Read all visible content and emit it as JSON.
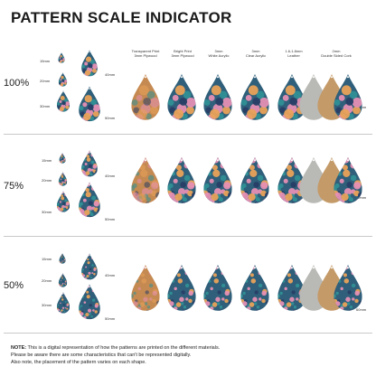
{
  "title": "PATTERN SCALE INDICATOR",
  "materials": [
    {
      "line1": "Transparent Print",
      "line2": "3mm Plywood"
    },
    {
      "line1": "Bright Print",
      "line2": "3mm Plywood"
    },
    {
      "line1": "3mm",
      "line2": "White Acrylic"
    },
    {
      "line1": "3mm",
      "line2": "Clear Acrylic"
    },
    {
      "line1": "1.6-1.8mm",
      "line2": "Leather"
    },
    {
      "line1": "2mm",
      "line2": "Double Sided Cork"
    }
  ],
  "sections": [
    {
      "scale": "100%",
      "sizes": {
        "s15": "15mm",
        "s20": "20mm",
        "s30": "30mm",
        "s40": "40mm",
        "s50": "50mm",
        "s60": "60mm"
      }
    },
    {
      "scale": "75%",
      "sizes": {
        "s15": "15mm",
        "s20": "20mm",
        "s30": "30mm",
        "s40": "40mm",
        "s50": "50mm",
        "s60": "60mm"
      }
    },
    {
      "scale": "50%",
      "sizes": {
        "s15": "15mm",
        "s20": "20mm",
        "s30": "30mm",
        "s40": "40mm",
        "s50": "50mm",
        "s60": "60mm"
      }
    }
  ],
  "note": {
    "label": "NOTE:",
    "line1": " This is a digital representation of how the patterns are printed on the different materials.",
    "line2": "Please be aware there are some characteristics that can't be represented digitally.",
    "line3": "Also note, the placement of the pattern varies on each shape."
  },
  "colors": {
    "pink": "#e58fb4",
    "teal": "#2f8f95",
    "navy": "#283e66",
    "orange": "#e9a25a",
    "wood": "#c58a52",
    "cork": "#c49a68",
    "leather": "#b9b9b5"
  }
}
